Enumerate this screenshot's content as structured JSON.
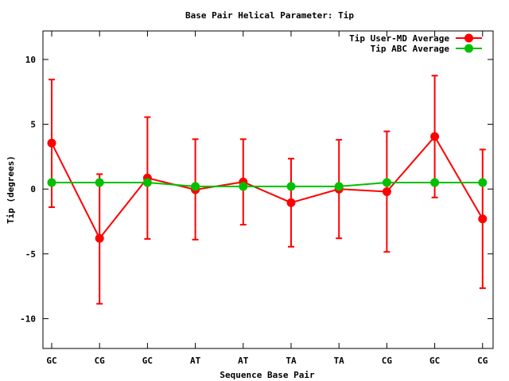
{
  "chart_data": {
    "type": "line",
    "title": "Base Pair Helical Parameter: Tip",
    "xlabel": "Sequence Base Pair",
    "ylabel": "Tip (degrees)",
    "categories": [
      "GC",
      "CG",
      "GC",
      "AT",
      "AT",
      "TA",
      "TA",
      "CG",
      "GC",
      "CG"
    ],
    "ylim": [
      -12.3,
      12.2
    ],
    "yticks": [
      -10,
      -5,
      0,
      5,
      10
    ],
    "grid": false,
    "legend_position": "top-right",
    "series": [
      {
        "name": "Tip User-MD Average",
        "color": "#ff0000",
        "values": [
          3.55,
          -3.8,
          0.85,
          -0.05,
          0.55,
          -1.05,
          0.0,
          -0.2,
          4.05,
          -2.3
        ],
        "error_low": [
          -1.4,
          -8.85,
          -3.85,
          -3.9,
          -2.75,
          -4.45,
          -3.8,
          -4.85,
          -0.65,
          -7.65
        ],
        "error_high": [
          8.45,
          1.15,
          5.55,
          3.85,
          3.85,
          2.35,
          3.8,
          4.45,
          8.75,
          3.05
        ]
      },
      {
        "name": "Tip ABC Average",
        "color": "#00c000",
        "values": [
          0.5,
          0.5,
          0.5,
          0.2,
          0.2,
          0.2,
          0.2,
          0.5,
          0.5,
          0.5
        ]
      }
    ]
  }
}
